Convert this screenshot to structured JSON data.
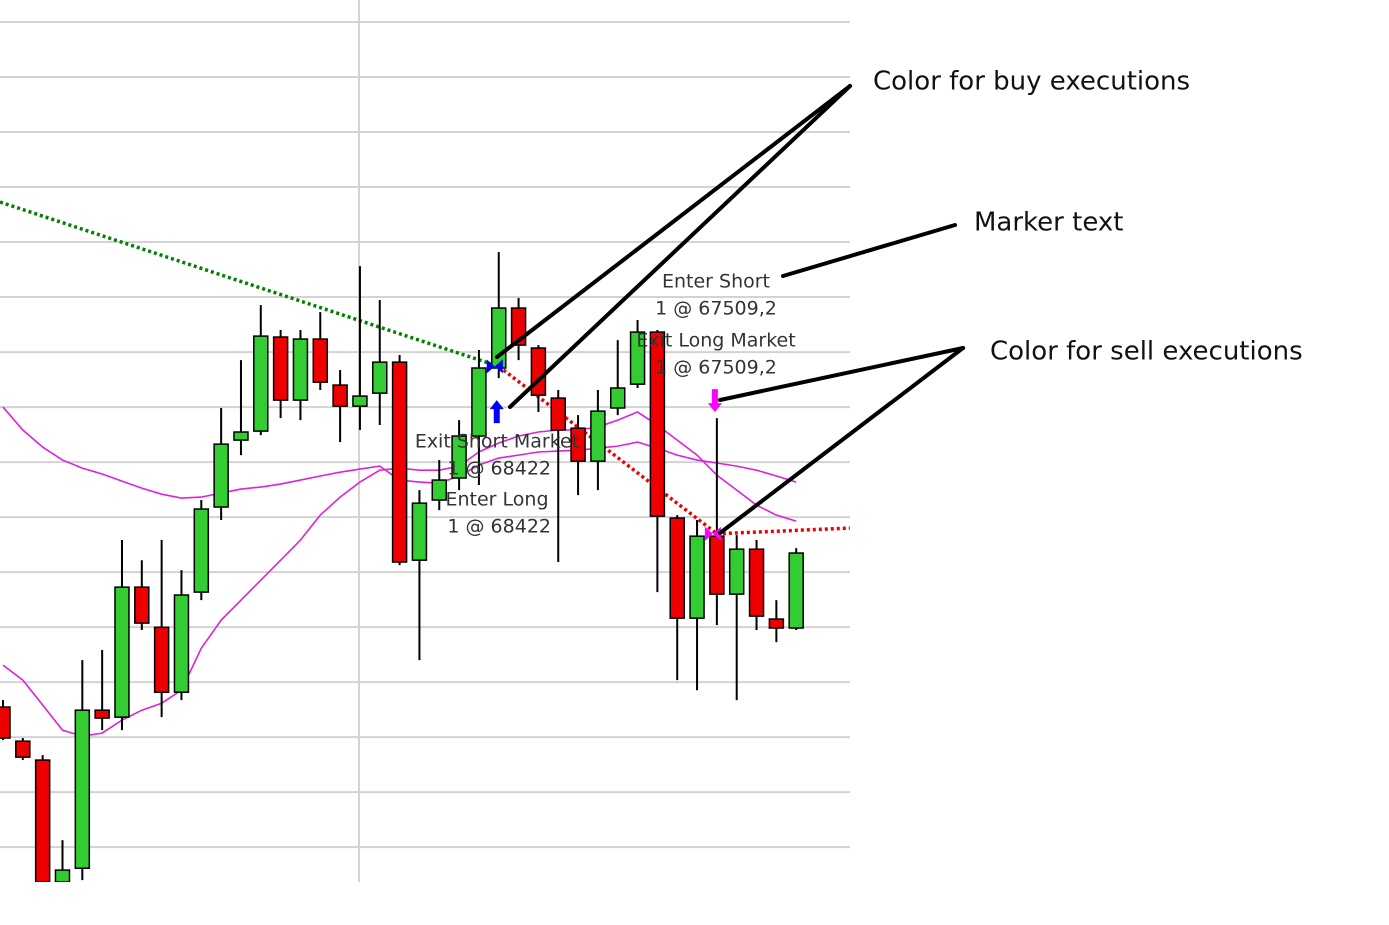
{
  "chart_data": {
    "type": "candlestick",
    "categories": [
      null,
      null,
      null,
      null,
      null,
      null,
      null,
      null,
      null,
      null,
      null,
      null,
      null,
      null,
      null,
      null,
      null,
      null,
      null,
      null,
      null,
      null,
      null,
      null,
      null,
      null,
      null,
      null,
      null,
      null,
      null,
      null,
      null,
      null,
      null,
      null,
      null,
      null,
      null,
      null,
      null
    ],
    "open": [
      66564,
      66378,
      66275,
      65610,
      65685,
      66547,
      66509,
      67218,
      66999,
      66645,
      67191,
      67655,
      68020,
      68069,
      68582,
      68238,
      68571,
      68320,
      68205,
      68276,
      68445,
      67365,
      67693,
      67813,
      68042,
      68413,
      68740,
      68522,
      68249,
      68085,
      67905,
      68195,
      68325,
      68609,
      67595,
      67049,
      67496,
      67180,
      67425,
      67044,
      66995
    ],
    "high": [
      66602,
      66395,
      66302,
      65838,
      66820,
      66875,
      67475,
      67365,
      67475,
      67311,
      67693,
      68195,
      68456,
      68756,
      68620,
      68620,
      68718,
      68402,
      68969,
      68784,
      68484,
      67747,
      67911,
      68129,
      68511,
      69045,
      68795,
      68538,
      68293,
      68156,
      68293,
      68565,
      68675,
      68620,
      67611,
      67584,
      68140,
      67502,
      67475,
      67147,
      67431
    ],
    "low": [
      66384,
      66275,
      65610,
      65610,
      65620,
      66438,
      66438,
      66984,
      66509,
      66602,
      67147,
      67584,
      67938,
      68047,
      68140,
      68129,
      68293,
      68009,
      68075,
      68102,
      67338,
      66820,
      67638,
      67747,
      67775,
      68358,
      68456,
      68173,
      67355,
      67720,
      67747,
      68156,
      68304,
      67191,
      66711,
      66656,
      67011,
      66602,
      66984,
      66918,
      66984
    ],
    "close": [
      66395,
      66291,
      65610,
      65675,
      66547,
      66504,
      67218,
      67022,
      66645,
      67175,
      67644,
      67998,
      68064,
      68587,
      68238,
      68571,
      68336,
      68205,
      68260,
      68445,
      67355,
      67676,
      67802,
      68042,
      68413,
      68740,
      68538,
      68265,
      68075,
      67905,
      68178,
      68304,
      68609,
      67605,
      67049,
      67496,
      67180,
      67425,
      67060,
      66995,
      67404
    ],
    "up_color": "#33cc33",
    "down_color": "#ee0000",
    "moving_averages": [
      {
        "color": "#dd22dd",
        "values": [
          68200,
          68075,
          67982,
          67911,
          67867,
          67835,
          67796,
          67758,
          67725,
          67704,
          67709,
          67731,
          67753,
          67764,
          67780,
          67802,
          67824,
          67845,
          67862,
          67878,
          67802,
          67791,
          67785,
          67824,
          67884,
          67922,
          67938,
          67955,
          67960,
          67965,
          67976,
          67987,
          68009,
          67976,
          67938,
          67911,
          67895,
          67878,
          67856,
          67824,
          67791
        ]
      },
      {
        "color": "#dd22dd",
        "values": [
          66793,
          66711,
          66575,
          66438,
          66405,
          66422,
          66493,
          66547,
          66585,
          66656,
          66885,
          67038,
          67147,
          67256,
          67365,
          67475,
          67611,
          67709,
          67791,
          67856,
          67867,
          67856,
          67856,
          67878,
          67955,
          68004,
          68042,
          68064,
          68075,
          68075,
          68091,
          68129,
          68173,
          68102,
          68020,
          67938,
          67829,
          67747,
          67665,
          67611,
          67578
        ]
      }
    ],
    "ylim": [
      65610,
      70420
    ],
    "yticks": [
      65800,
      66100,
      66400,
      66700,
      67000,
      67300,
      67600,
      67900,
      68200,
      68500,
      68800,
      69100,
      69400,
      69700,
      70000,
      70300
    ],
    "grid": true,
    "buy_color": "#0000ff",
    "sell_color": "#ff00ff",
    "executions": [
      {
        "name": "Exit Short Market",
        "text": "1 @ 68422",
        "price": 68422,
        "index": 25,
        "side": "buy"
      },
      {
        "name": "Enter Long",
        "text": "1 @ 68422",
        "price": 68422,
        "index": 25,
        "side": "buy"
      },
      {
        "name": "Enter Short",
        "text": "1 @ 67509,2",
        "price": 67509.2,
        "index": 36,
        "side": "sell"
      },
      {
        "name": "Exit Long Market",
        "text": "1 @ 67509,2",
        "price": 67509.2,
        "index": 36,
        "side": "sell"
      }
    ],
    "trade_lines": [
      {
        "color": "#008000",
        "points": [
          [
            -0.15,
            69318
          ],
          [
            25,
            68422
          ]
        ]
      },
      {
        "color": "#ee0000",
        "points": [
          [
            25,
            68422
          ],
          [
            36,
            67509.2
          ]
        ]
      },
      {
        "color": "#ee0000",
        "points": [
          [
            36,
            67509.2
          ],
          [
            42.7,
            67540
          ]
        ]
      }
    ],
    "callouts": [
      "Color for buy executions",
      "Marker text",
      "Color for sell executions"
    ]
  }
}
